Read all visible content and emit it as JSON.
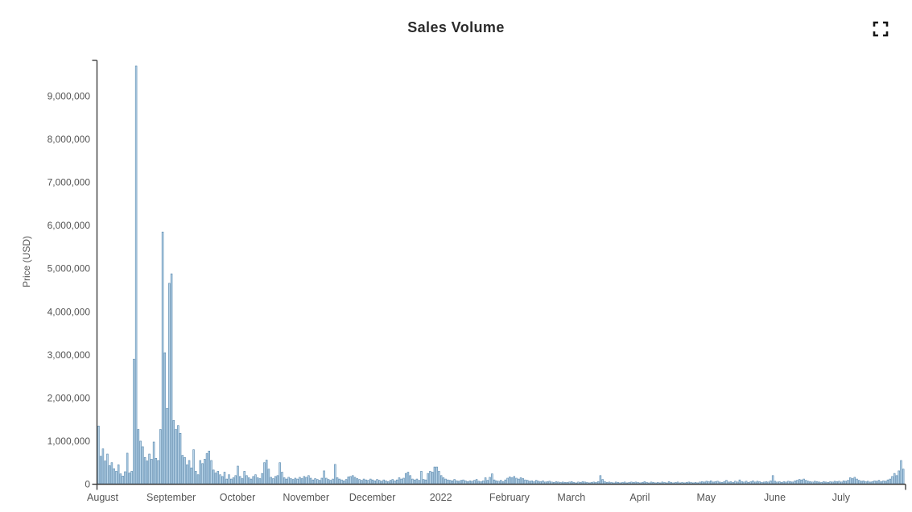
{
  "header": {
    "title": "Sales Volume"
  },
  "chart_data": {
    "type": "bar",
    "title": "Sales Volume",
    "xlabel": "",
    "ylabel": "Price (USD)",
    "start_date": "2021-08-01",
    "end_date": "2022-07-31",
    "x_tick_labels": [
      "August",
      "September",
      "October",
      "November",
      "December",
      "2022",
      "February",
      "March",
      "April",
      "May",
      "June",
      "July"
    ],
    "month_lengths": [
      31,
      30,
      31,
      30,
      31,
      31,
      28,
      31,
      30,
      31,
      30,
      31
    ],
    "y_tick_labels": [
      "0",
      "1,000,000",
      "2,000,000",
      "3,000,000",
      "4,000,000",
      "5,000,000",
      "6,000,000",
      "7,000,000",
      "8,000,000",
      "9,000,000"
    ],
    "y_tick_values": [
      0,
      1000000,
      2000000,
      3000000,
      4000000,
      5000000,
      6000000,
      7000000,
      8000000,
      9000000
    ],
    "ylim": [
      0,
      9830000
    ],
    "grid": false,
    "legend": false,
    "bar_fill": "#b8d4e9",
    "bar_stroke": "#5585ab",
    "axis_color": "#3d3d3d",
    "label_color": "#555555",
    "values_usd": [
      1350000,
      650000,
      820000,
      540000,
      700000,
      430000,
      500000,
      360000,
      300000,
      450000,
      240000,
      190000,
      290000,
      720000,
      260000,
      300000,
      2900000,
      9700000,
      1270000,
      1000000,
      870000,
      620000,
      540000,
      700000,
      580000,
      980000,
      600000,
      550000,
      1270000,
      5850000,
      3050000,
      1760000,
      4660000,
      4880000,
      1480000,
      1270000,
      1360000,
      1180000,
      670000,
      620000,
      450000,
      550000,
      380000,
      800000,
      300000,
      220000,
      550000,
      480000,
      580000,
      710000,
      770000,
      550000,
      330000,
      260000,
      300000,
      220000,
      180000,
      280000,
      120000,
      220000,
      120000,
      150000,
      200000,
      420000,
      180000,
      130000,
      300000,
      200000,
      150000,
      120000,
      180000,
      220000,
      150000,
      130000,
      250000,
      500000,
      560000,
      350000,
      160000,
      130000,
      180000,
      200000,
      500000,
      280000,
      150000,
      120000,
      160000,
      130000,
      110000,
      140000,
      120000,
      160000,
      130000,
      180000,
      160000,
      200000,
      140000,
      100000,
      130000,
      110000,
      90000,
      140000,
      310000,
      140000,
      110000,
      90000,
      120000,
      460000,
      150000,
      120000,
      100000,
      80000,
      110000,
      170000,
      180000,
      200000,
      160000,
      130000,
      110000,
      90000,
      120000,
      100000,
      90000,
      120000,
      100000,
      80000,
      110000,
      90000,
      70000,
      100000,
      80000,
      60000,
      90000,
      110000,
      80000,
      100000,
      150000,
      120000,
      140000,
      250000,
      280000,
      200000,
      120000,
      100000,
      120000,
      90000,
      300000,
      110000,
      100000,
      250000,
      300000,
      280000,
      400000,
      400000,
      300000,
      200000,
      150000,
      120000,
      100000,
      90000,
      80000,
      110000,
      80000,
      70000,
      90000,
      100000,
      80000,
      60000,
      80000,
      70000,
      90000,
      110000,
      70000,
      60000,
      80000,
      150000,
      90000,
      160000,
      240000,
      100000,
      80000,
      70000,
      90000,
      60000,
      100000,
      140000,
      170000,
      150000,
      180000,
      140000,
      120000,
      150000,
      130000,
      100000,
      90000,
      70000,
      80000,
      60000,
      90000,
      70000,
      60000,
      80000,
      50000,
      60000,
      70000,
      50000,
      40000,
      60000,
      50000,
      40000,
      50000,
      40000,
      40000,
      50000,
      60000,
      40000,
      30000,
      50000,
      40000,
      60000,
      50000,
      40000,
      30000,
      40000,
      50000,
      40000,
      60000,
      200000,
      110000,
      60000,
      40000,
      50000,
      40000,
      30000,
      50000,
      40000,
      30000,
      40000,
      50000,
      30000,
      40000,
      50000,
      40000,
      50000,
      40000,
      30000,
      40000,
      60000,
      40000,
      30000,
      50000,
      40000,
      30000,
      40000,
      30000,
      50000,
      40000,
      30000,
      60000,
      40000,
      30000,
      40000,
      50000,
      30000,
      40000,
      30000,
      40000,
      50000,
      40000,
      30000,
      40000,
      30000,
      50000,
      60000,
      50000,
      70000,
      60000,
      80000,
      50000,
      60000,
      70000,
      50000,
      40000,
      60000,
      90000,
      50000,
      60000,
      40000,
      70000,
      50000,
      100000,
      60000,
      50000,
      70000,
      40000,
      60000,
      80000,
      50000,
      70000,
      60000,
      40000,
      50000,
      60000,
      50000,
      80000,
      200000,
      70000,
      50000,
      60000,
      40000,
      60000,
      50000,
      70000,
      60000,
      50000,
      80000,
      90000,
      110000,
      100000,
      120000,
      90000,
      70000,
      60000,
      50000,
      70000,
      60000,
      50000,
      40000,
      60000,
      50000,
      40000,
      60000,
      50000,
      70000,
      60000,
      70000,
      50000,
      80000,
      70000,
      90000,
      150000,
      130000,
      160000,
      120000,
      90000,
      70000,
      80000,
      60000,
      70000,
      50000,
      60000,
      80000,
      70000,
      90000,
      60000,
      80000,
      70000,
      100000,
      120000,
      180000,
      250000,
      200000,
      310000,
      550000,
      350000
    ]
  }
}
